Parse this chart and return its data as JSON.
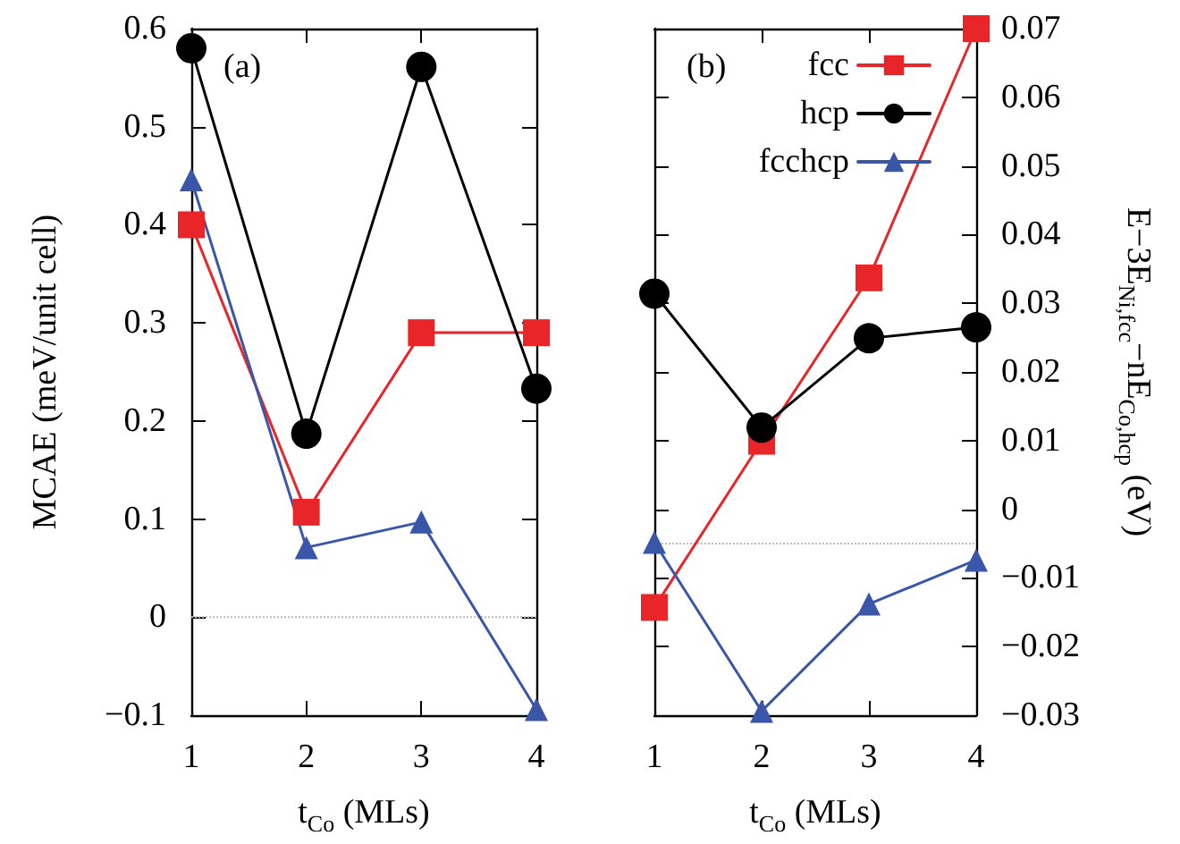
{
  "chart_data": [
    {
      "type": "line",
      "xlabel": "t$_{Co}$ (MLs)",
      "ylabel": "MCAE (meV/unit cell)",
      "annotations": [
        "(a)"
      ],
      "x": [
        1,
        2,
        3,
        4
      ],
      "xlim": [
        1,
        4
      ],
      "xticks": [
        1,
        2,
        3,
        4
      ],
      "ylim": [
        -0.1,
        0.6
      ],
      "yticks": [
        -0.1,
        0,
        0.1,
        0.2,
        0.3,
        0.4,
        0.5,
        0.6
      ],
      "grid": false,
      "legend": false,
      "line_style": "solid",
      "ref_lines": [
        {
          "axis": "y",
          "value": 0,
          "label": null,
          "color": "#bbbbbb",
          "line_style": "dotted"
        }
      ],
      "series": [
        {
          "color": "#e8262a",
          "marker": "square",
          "values": [
            0.4,
            0.107,
            0.29,
            0.29
          ]
        },
        {
          "color": "#000000",
          "marker": "circle",
          "values": [
            0.58,
            0.187,
            0.561,
            0.233
          ]
        },
        {
          "color": "#3a56a8",
          "marker": "triangle",
          "values": [
            0.446,
            0.071,
            0.097,
            -0.094
          ]
        }
      ]
    },
    {
      "type": "line",
      "xlabel": "t$_{Co}$ (MLs)",
      "y2label": "E−3E$_{Ni,fcc}$−nE$_{Co,hcp}$ (eV)",
      "annotations": [
        "(b)"
      ],
      "x": [
        1,
        2,
        3,
        4
      ],
      "xlim": [
        1,
        4
      ],
      "xticks": [
        1,
        2,
        3,
        4
      ],
      "y2lim": [
        -0.03,
        0.07
      ],
      "y2ticks": [
        -0.03,
        -0.02,
        -0.01,
        0,
        0.01,
        0.02,
        0.03,
        0.04,
        0.05,
        0.06,
        0.07
      ],
      "grid": false,
      "legend": "top right",
      "line_style": "solid",
      "ref_lines": [
        {
          "axis": "y2",
          "value": -0.005,
          "label": null,
          "color": "#bbbbbb",
          "line_style": "dotted"
        }
      ],
      "series": [
        {
          "name": "fcc",
          "color": "#e8262a",
          "marker": "square",
          "axis": "y2",
          "values": [
            -0.0143,
            0.0099,
            0.0337,
            0.07
          ]
        },
        {
          "name": "hcp",
          "color": "#000000",
          "marker": "circle",
          "axis": "y2",
          "values": [
            0.0314,
            0.0119,
            0.0249,
            0.0265
          ]
        },
        {
          "name": "fcchcp",
          "color": "#3a56a8",
          "marker": "triangle",
          "axis": "y2",
          "values": [
            -0.0048,
            -0.0294,
            -0.0138,
            -0.0074
          ]
        }
      ]
    }
  ]
}
